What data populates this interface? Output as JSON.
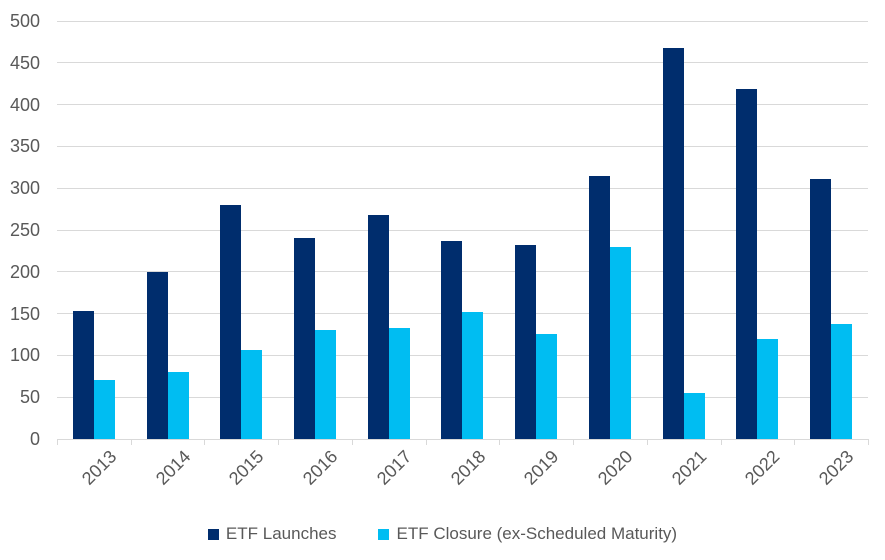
{
  "chart_data": {
    "type": "bar",
    "title": "",
    "xlabel": "",
    "ylabel": "",
    "categories": [
      "2013",
      "2014",
      "2015",
      "2016",
      "2017",
      "2018",
      "2019",
      "2020",
      "2021",
      "2022",
      "2023"
    ],
    "series": [
      {
        "name": "ETF Launches",
        "color": "#002d6d",
        "values": [
          153,
          200,
          280,
          240,
          268,
          237,
          232,
          315,
          468,
          419,
          311
        ]
      },
      {
        "name": "ETF Closure (ex-Scheduled Maturity)",
        "color": "#00bdf2",
        "values": [
          70,
          80,
          107,
          130,
          133,
          152,
          126,
          230,
          55,
          120,
          137
        ]
      }
    ],
    "ylim": [
      0,
      500
    ],
    "yticks": [
      0,
      50,
      100,
      150,
      200,
      250,
      300,
      350,
      400,
      450,
      500
    ],
    "grid": "horizontal",
    "gridline_color": "#d9d9d9",
    "axis_text_color": "#595959",
    "legend_position": "bottom"
  }
}
